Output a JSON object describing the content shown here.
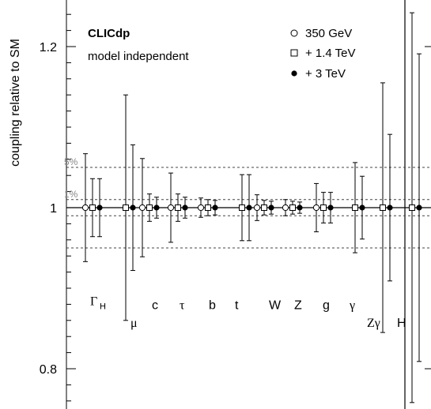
{
  "chart_data": {
    "type": "scatter",
    "title": "CLICdp",
    "subtitle": "model independent",
    "ylabel": "coupling relative to SM",
    "xlabel": "",
    "ylim": [
      0.73,
      1.25
    ],
    "yticks": [
      {
        "value": 0.8,
        "label": "0.8"
      },
      {
        "value": 1.0,
        "label": "1"
      },
      {
        "value": 1.2,
        "label": "1.2"
      }
    ],
    "grid": false,
    "legend_position": "top-right",
    "reference_lines": [
      {
        "value": 1.05,
        "label": "5%"
      },
      {
        "value": 1.01,
        "label": "1%"
      },
      {
        "value": 0.99,
        "label": ""
      },
      {
        "value": 0.95,
        "label": ""
      }
    ],
    "series": [
      {
        "name": "350 GeV",
        "marker": "open-circle"
      },
      {
        "name": "+ 1.4 TeV",
        "marker": "open-square"
      },
      {
        "name": "+ 3 TeV",
        "marker": "filled-circle"
      }
    ],
    "categories": [
      {
        "label": "Γ",
        "sub": "H",
        "label_value": 0.885,
        "values": [
          1,
          1,
          1
        ],
        "errors": [
          0.067,
          0.036,
          0.036
        ]
      },
      {
        "label": "μ",
        "sub": "",
        "label_value": 0.858,
        "values": [
          null,
          1,
          1
        ],
        "errors": [
          null,
          0.14,
          0.078
        ]
      },
      {
        "label": "c",
        "sub": "",
        "label_value": 0.88,
        "values": [
          1,
          1,
          1
        ],
        "errors": [
          0.061,
          0.017,
          0.013
        ]
      },
      {
        "label": "τ",
        "sub": "",
        "label_value": 0.88,
        "values": [
          1,
          1,
          1
        ],
        "errors": [
          0.043,
          0.017,
          0.013
        ]
      },
      {
        "label": "b",
        "sub": "",
        "label_value": 0.88,
        "values": [
          1,
          1,
          1
        ],
        "errors": [
          0.012,
          0.01,
          0.009
        ]
      },
      {
        "label": "t",
        "sub": "",
        "label_value": 0.88,
        "values": [
          null,
          1,
          1
        ],
        "errors": [
          null,
          0.041,
          0.041
        ]
      },
      {
        "label": "W",
        "sub": "",
        "label_value": 0.88,
        "values": [
          1,
          1,
          1
        ],
        "errors": [
          0.016,
          0.009,
          0.008
        ]
      },
      {
        "label": "Z",
        "sub": "",
        "label_value": 0.88,
        "values": [
          1,
          1,
          1
        ],
        "errors": [
          0.01,
          0.008,
          0.007
        ]
      },
      {
        "label": "g",
        "sub": "",
        "label_value": 0.88,
        "values": [
          1,
          1,
          1
        ],
        "errors": [
          0.03,
          0.019,
          0.019
        ]
      },
      {
        "label": "γ",
        "sub": "",
        "label_value": 0.88,
        "values": [
          null,
          1,
          1
        ],
        "errors": [
          null,
          0.056,
          0.039
        ]
      },
      {
        "label": "Zγ",
        "sub": "",
        "label_value": 0.858,
        "values": [
          null,
          1,
          1
        ],
        "errors": [
          null,
          0.155,
          0.091
        ]
      },
      {
        "label": "H",
        "sub": "",
        "label_value": 0.858,
        "values": [
          null,
          1,
          1
        ],
        "errors": [
          null,
          0.242,
          0.191
        ]
      }
    ]
  }
}
